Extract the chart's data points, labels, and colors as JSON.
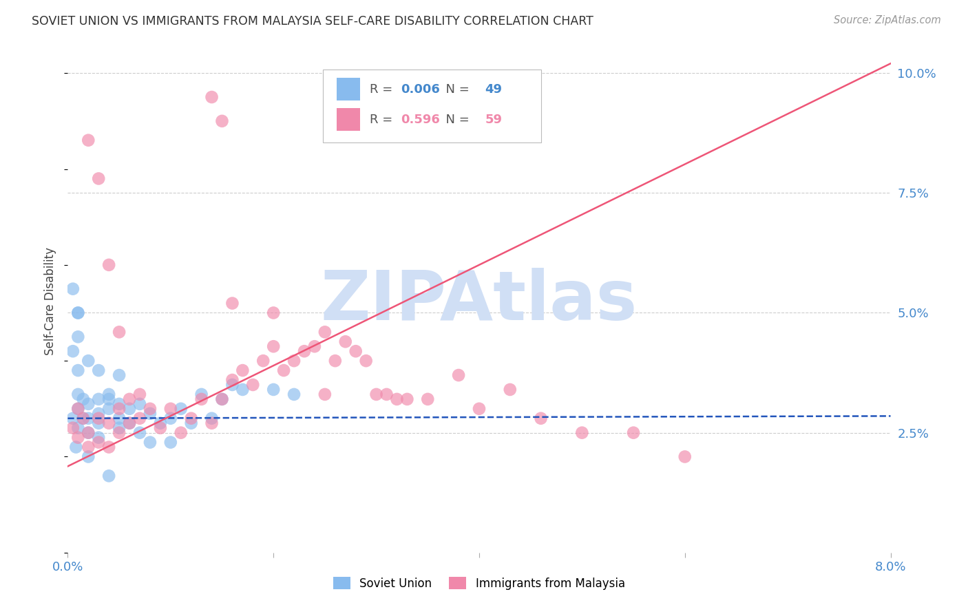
{
  "title": "SOVIET UNION VS IMMIGRANTS FROM MALAYSIA SELF-CARE DISABILITY CORRELATION CHART",
  "source": "Source: ZipAtlas.com",
  "ylabel": "Self-Care Disability",
  "x_min": 0.0,
  "x_max": 0.08,
  "y_min": 0.0,
  "y_max": 0.105,
  "yticks": [
    0.025,
    0.05,
    0.075,
    0.1
  ],
  "ytick_labels": [
    "2.5%",
    "5.0%",
    "7.5%",
    "10.0%"
  ],
  "series1_name": "Soviet Union",
  "series1_color": "#88BBEE",
  "series1_R": "0.006",
  "series1_N": "49",
  "series2_name": "Immigrants from Malaysia",
  "series2_color": "#F088AA",
  "series2_R": "0.596",
  "series2_N": "59",
  "trend1_color": "#2255BB",
  "trend2_color": "#EE5577",
  "watermark": "ZIPAtlas",
  "watermark_color": "#D0DFF5",
  "background_color": "#FFFFFF",
  "grid_color": "#CCCCCC",
  "axis_label_color": "#4488CC",
  "title_color": "#333333",
  "soviet_x": [
    0.0005,
    0.0005,
    0.0008,
    0.001,
    0.001,
    0.001,
    0.001,
    0.001,
    0.0015,
    0.0015,
    0.002,
    0.002,
    0.002,
    0.002,
    0.003,
    0.003,
    0.003,
    0.003,
    0.004,
    0.004,
    0.004,
    0.005,
    0.005,
    0.005,
    0.006,
    0.006,
    0.007,
    0.007,
    0.008,
    0.008,
    0.009,
    0.01,
    0.01,
    0.011,
    0.012,
    0.013,
    0.014,
    0.015,
    0.016,
    0.017,
    0.0005,
    0.001,
    0.001,
    0.002,
    0.003,
    0.004,
    0.005,
    0.02,
    0.022
  ],
  "soviet_y": [
    0.042,
    0.028,
    0.022,
    0.05,
    0.038,
    0.033,
    0.03,
    0.026,
    0.032,
    0.028,
    0.031,
    0.028,
    0.025,
    0.02,
    0.032,
    0.029,
    0.027,
    0.024,
    0.033,
    0.03,
    0.016,
    0.031,
    0.028,
    0.026,
    0.03,
    0.027,
    0.031,
    0.025,
    0.029,
    0.023,
    0.027,
    0.028,
    0.023,
    0.03,
    0.027,
    0.033,
    0.028,
    0.032,
    0.035,
    0.034,
    0.055,
    0.05,
    0.045,
    0.04,
    0.038,
    0.032,
    0.037,
    0.034,
    0.033
  ],
  "malaysia_x": [
    0.0005,
    0.001,
    0.001,
    0.0015,
    0.002,
    0.002,
    0.003,
    0.003,
    0.004,
    0.004,
    0.005,
    0.005,
    0.006,
    0.006,
    0.007,
    0.007,
    0.008,
    0.009,
    0.01,
    0.011,
    0.012,
    0.013,
    0.014,
    0.015,
    0.016,
    0.016,
    0.017,
    0.018,
    0.019,
    0.02,
    0.021,
    0.022,
    0.023,
    0.024,
    0.025,
    0.026,
    0.027,
    0.028,
    0.029,
    0.03,
    0.031,
    0.033,
    0.035,
    0.038,
    0.04,
    0.043,
    0.046,
    0.05,
    0.055,
    0.06,
    0.002,
    0.003,
    0.004,
    0.005,
    0.014,
    0.015,
    0.02,
    0.025,
    0.032
  ],
  "malaysia_y": [
    0.026,
    0.03,
    0.024,
    0.028,
    0.025,
    0.022,
    0.028,
    0.023,
    0.027,
    0.022,
    0.03,
    0.025,
    0.032,
    0.027,
    0.033,
    0.028,
    0.03,
    0.026,
    0.03,
    0.025,
    0.028,
    0.032,
    0.027,
    0.032,
    0.052,
    0.036,
    0.038,
    0.035,
    0.04,
    0.043,
    0.038,
    0.04,
    0.042,
    0.043,
    0.046,
    0.04,
    0.044,
    0.042,
    0.04,
    0.033,
    0.033,
    0.032,
    0.032,
    0.037,
    0.03,
    0.034,
    0.028,
    0.025,
    0.025,
    0.02,
    0.086,
    0.078,
    0.06,
    0.046,
    0.095,
    0.09,
    0.05,
    0.033,
    0.032
  ],
  "trend1_slope": 0.006,
  "trend1_intercept": 0.028,
  "trend2_slope": 1.05,
  "trend2_intercept": 0.018
}
